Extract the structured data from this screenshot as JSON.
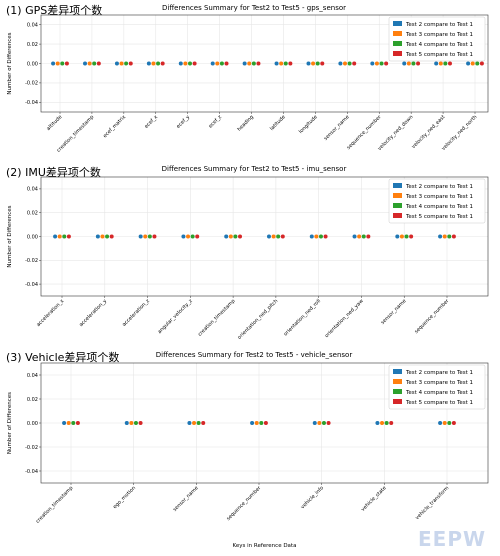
{
  "colors": {
    "series": [
      "#1f77b4",
      "#ff7f0e",
      "#2ca02c",
      "#d62728"
    ],
    "grid": "#e6e6e6",
    "axis": "#333333"
  },
  "watermark": "EEPW",
  "chart_data": [
    {
      "type": "scatter",
      "heading": "(1)  GPS差异项个数",
      "title": "Differences Summary for Test2 to Test5 - gps_sensor",
      "ylabel": "Number of Differences",
      "xlabel": "",
      "ylim": [
        -0.05,
        0.05
      ],
      "yticks": [
        "0.04",
        "0.02",
        "0.00",
        "-0.02",
        "-0.04"
      ],
      "ytick_values": [
        0.04,
        0.02,
        0.0,
        -0.02,
        -0.04
      ],
      "grid": true,
      "legend_position": "top-right",
      "categories": [
        "altitude",
        "creation_timestamp",
        "ecef_matrix",
        "ecef_x",
        "ecef_y",
        "ecef_z",
        "heading",
        "latitude",
        "longitude",
        "sensor_name",
        "sequence_number",
        "velocity_ned_down",
        "velocity_ned_east",
        "velocity_ned_north"
      ],
      "series": [
        {
          "name": "Test 2 compare to Test 1",
          "values": [
            0,
            0,
            0,
            0,
            0,
            0,
            0,
            0,
            0,
            0,
            0,
            0,
            0,
            0
          ]
        },
        {
          "name": "Test 3 compare to Test 1",
          "values": [
            0,
            0,
            0,
            0,
            0,
            0,
            0,
            0,
            0,
            0,
            0,
            0,
            0,
            0
          ]
        },
        {
          "name": "Test 4 compare to Test 1",
          "values": [
            0,
            0,
            0,
            0,
            0,
            0,
            0,
            0,
            0,
            0,
            0,
            0,
            0,
            0
          ]
        },
        {
          "name": "Test 5 compare to Test 1",
          "values": [
            0,
            0,
            0,
            0,
            0,
            0,
            0,
            0,
            0,
            0,
            0,
            0,
            0,
            0
          ]
        }
      ]
    },
    {
      "type": "scatter",
      "heading": "(2)  IMU差异项个数",
      "title": "Differences Summary for Test2 to Test5 - imu_sensor",
      "ylabel": "Number of Differences",
      "xlabel": "",
      "ylim": [
        -0.05,
        0.05
      ],
      "yticks": [
        "0.04",
        "0.02",
        "0.00",
        "-0.02",
        "-0.04"
      ],
      "ytick_values": [
        0.04,
        0.02,
        0.0,
        -0.02,
        -0.04
      ],
      "grid": true,
      "legend_position": "top-right",
      "categories": [
        "acceleration_x",
        "acceleration_y",
        "acceleration_z",
        "angular_velocity_z",
        "creation_timestamp",
        "orientation_ned_pitch",
        "orientation_ned_roll",
        "orientation_ned_yaw",
        "sensor_name",
        "sequence_number"
      ],
      "series": [
        {
          "name": "Test 2 compare to Test 1",
          "values": [
            0,
            0,
            0,
            0,
            0,
            0,
            0,
            0,
            0,
            0
          ]
        },
        {
          "name": "Test 3 compare to Test 1",
          "values": [
            0,
            0,
            0,
            0,
            0,
            0,
            0,
            0,
            0,
            0
          ]
        },
        {
          "name": "Test 4 compare to Test 1",
          "values": [
            0,
            0,
            0,
            0,
            0,
            0,
            0,
            0,
            0,
            0
          ]
        },
        {
          "name": "Test 5 compare to Test 1",
          "values": [
            0,
            0,
            0,
            0,
            0,
            0,
            0,
            0,
            0,
            0
          ]
        }
      ]
    },
    {
      "type": "scatter",
      "heading": "(3)  Vehicle差异项个数",
      "title": "Differences Summary for Test2 to Test5 - vehicle_sensor",
      "ylabel": "Number of Differences",
      "xlabel": "Keys in Reference Data",
      "ylim": [
        -0.05,
        0.05
      ],
      "yticks": [
        "0.04",
        "0.02",
        "0.00",
        "-0.02",
        "-0.04"
      ],
      "ytick_values": [
        0.04,
        0.02,
        0.0,
        -0.02,
        -0.04
      ],
      "grid": true,
      "legend_position": "top-right",
      "categories": [
        "creation_timestamp",
        "ego_motion",
        "sensor_name",
        "sequence_number",
        "vehicle_info",
        "vehicle_state",
        "vehicle_transform"
      ],
      "series": [
        {
          "name": "Test 2 compare to Test 1",
          "values": [
            0,
            0,
            0,
            0,
            0,
            0,
            0
          ]
        },
        {
          "name": "Test 3 compare to Test 1",
          "values": [
            0,
            0,
            0,
            0,
            0,
            0,
            0
          ]
        },
        {
          "name": "Test 4 compare to Test 1",
          "values": [
            0,
            0,
            0,
            0,
            0,
            0,
            0
          ]
        },
        {
          "name": "Test 5 compare to Test 1",
          "values": [
            0,
            0,
            0,
            0,
            0,
            0,
            0
          ]
        }
      ]
    }
  ]
}
